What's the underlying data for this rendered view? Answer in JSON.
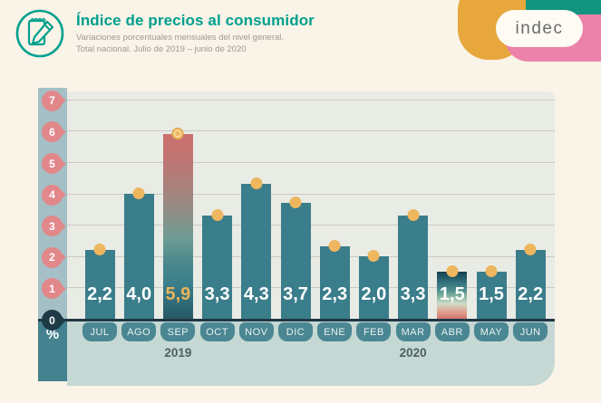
{
  "header": {
    "title": "Índice de precios al consumidor",
    "subtitle_line1": "Variaciones porcentuales mensuales del nivel general.",
    "subtitle_line2": "Total nacional. Julio de 2019 – junio de 2020"
  },
  "logo": {
    "text": "indec",
    "colors": {
      "yellow": "#E7A73C",
      "teal": "#13947F",
      "pink": "#EC82A9"
    }
  },
  "chart_data": {
    "type": "bar",
    "title": "Índice de precios al consumidor — variación porcentual mensual",
    "categories": [
      "JUL",
      "AGO",
      "SEP",
      "OCT",
      "NOV",
      "DIC",
      "ENE",
      "FEB",
      "MAR",
      "ABR",
      "MAY",
      "JUN"
    ],
    "values": [
      2.2,
      4.0,
      5.9,
      3.3,
      4.3,
      3.7,
      2.3,
      2.0,
      3.3,
      1.5,
      1.5,
      2.2
    ],
    "value_labels": [
      "2,2",
      "4,0",
      "5,9",
      "3,3",
      "4,3",
      "3,7",
      "2,3",
      "2,0",
      "3,3",
      "1,5",
      "1,5",
      "2,2"
    ],
    "highlight_max_index": 2,
    "highlight_min_index": 9,
    "years": [
      {
        "label": "2019",
        "month_index": 2
      },
      {
        "label": "2020",
        "month_index": 8
      }
    ],
    "xlabel": "",
    "ylabel": "%",
    "unit_label": "%",
    "ylim": [
      0,
      7
    ],
    "y_ticks": [
      0,
      1,
      2,
      3,
      4,
      5,
      6,
      7
    ],
    "grid": true,
    "legend": "none",
    "colors": {
      "bar": "#3A7D8B",
      "dot": "#EEB65E",
      "tick_pink": "#E2878A",
      "tick_zero": "#1D3A46",
      "value_text": "#FFFFFF",
      "value_highlight": "#E8B45C"
    }
  }
}
